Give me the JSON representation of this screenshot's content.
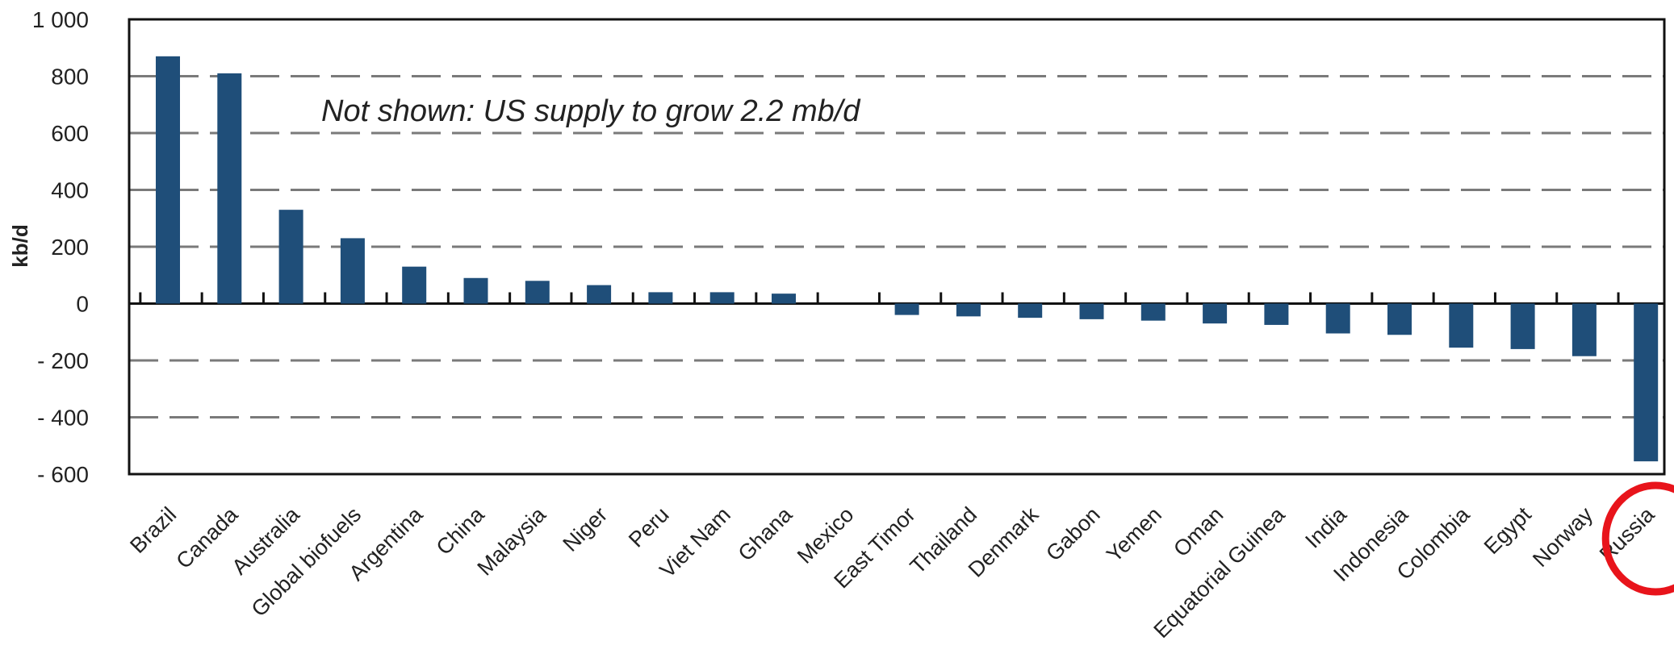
{
  "chart_data": {
    "type": "bar",
    "ylabel": "kb/d",
    "ylim": [
      -600,
      1000
    ],
    "yticks": [
      1000,
      800,
      600,
      400,
      200,
      0,
      -200,
      -400,
      -600
    ],
    "ytick_labels": [
      "1 000",
      "800",
      "600",
      "400",
      "200",
      "0",
      "- 200",
      "- 400",
      "- 600"
    ],
    "grid": true,
    "annotation": "Not shown: US supply to grow 2.2 mb/d",
    "highlighted_category": "Russia",
    "highlight_color": "#e8141b",
    "bar_color": "#1f4e79",
    "categories": [
      "Brazil",
      "Canada",
      "Australia",
      "Global biofuels",
      "Argentina",
      "China",
      "Malaysia",
      "Niger",
      "Peru",
      "Viet Nam",
      "Ghana",
      "Mexico",
      "East Timor",
      "Thailand",
      "Denmark",
      "Gabon",
      "Yemen",
      "Oman",
      "Equatorial Guinea",
      "India",
      "Indonesia",
      "Colombia",
      "Egypt",
      "Norway",
      "Russia"
    ],
    "values": [
      870,
      810,
      330,
      230,
      130,
      90,
      80,
      65,
      40,
      40,
      35,
      0,
      -40,
      -45,
      -50,
      -55,
      -60,
      -70,
      -75,
      -105,
      -110,
      -155,
      -160,
      -185,
      -555
    ]
  }
}
